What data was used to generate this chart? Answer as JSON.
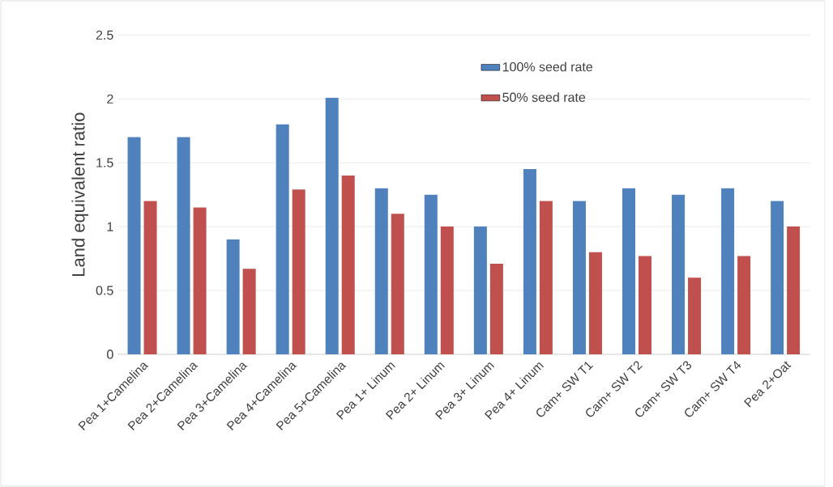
{
  "chart_data": {
    "type": "bar",
    "ylabel": "Land equivalent ratio",
    "categories": [
      "Pea 1+Camelina",
      "Pea 2+Camelina",
      "Pea 3+Camelina",
      "Pea 4+Camelina",
      "Pea 5+Camelina",
      "Pea 1+ Linum",
      "Pea 2+ Linum",
      "Pea 3+ Linum",
      "Pea 4+ Linum",
      "Cam+ SW T1",
      "Cam+ SW T2",
      "Cam+ SW T3",
      "Cam+ SW T4",
      "Pea 2+Oat"
    ],
    "series": [
      {
        "name": "100% seed rate",
        "color": "#4f81bd",
        "values": [
          1.7,
          1.7,
          0.9,
          1.8,
          2.01,
          1.3,
          1.25,
          1.0,
          1.45,
          1.2,
          1.3,
          1.25,
          1.3,
          1.2
        ]
      },
      {
        "name": "50% seed rate",
        "color": "#c0504d",
        "values": [
          1.2,
          1.15,
          0.67,
          1.29,
          1.4,
          1.1,
          1.0,
          0.71,
          1.2,
          0.8,
          0.77,
          0.6,
          0.77,
          1.0
        ]
      }
    ],
    "ylim": [
      0,
      2.5
    ],
    "yticks": [
      0,
      0.5,
      1,
      1.5,
      2,
      2.5
    ],
    "grid": "y",
    "legend": "top right"
  }
}
